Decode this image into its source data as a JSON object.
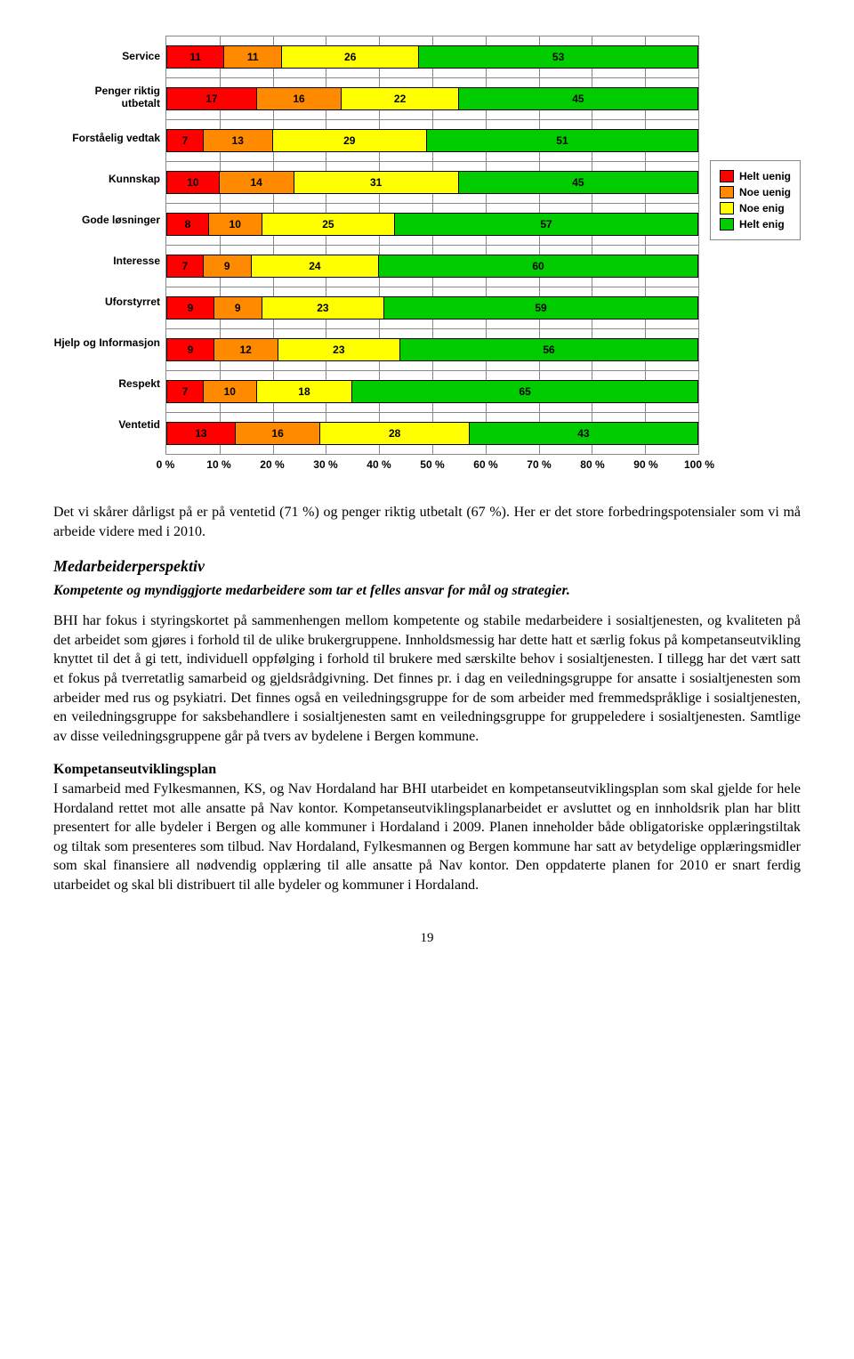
{
  "chart": {
    "type": "stacked-bar-horizontal",
    "categories": [
      "Service",
      "Penger riktig utbetalt",
      "Forståelig vedtak",
      "Kunnskap",
      "Gode løsninger",
      "Interesse",
      "Uforstyrret",
      "Hjelp og Informasjon",
      "Respekt",
      "Ventetid"
    ],
    "series_names": [
      "Helt uenig",
      "Noe uenig",
      "Noe enig",
      "Helt enig"
    ],
    "values": [
      [
        11,
        11,
        26,
        53
      ],
      [
        17,
        16,
        22,
        45
      ],
      [
        7,
        13,
        29,
        51
      ],
      [
        10,
        14,
        31,
        45
      ],
      [
        8,
        10,
        25,
        57
      ],
      [
        7,
        9,
        24,
        60
      ],
      [
        9,
        9,
        23,
        59
      ],
      [
        9,
        12,
        23,
        56
      ],
      [
        7,
        10,
        18,
        65
      ],
      [
        13,
        16,
        28,
        43
      ]
    ],
    "colors": [
      "#ff0000",
      "#ff8a00",
      "#ffff00",
      "#00cc00"
    ],
    "x_ticks": [
      "0 %",
      "10 %",
      "20 %",
      "30 %",
      "40 %",
      "50 %",
      "60 %",
      "70 %",
      "80 %",
      "90 %",
      "100 %"
    ],
    "x_tick_positions": [
      0,
      10,
      20,
      30,
      40,
      50,
      60,
      70,
      80,
      90,
      100
    ],
    "category_font": "Arial bold 12",
    "value_font": "Arial bold 12",
    "grid_color": "#888888",
    "background_color": "#ffffff"
  },
  "legend": {
    "items": [
      "Helt uenig",
      "Noe uenig",
      "Noe enig",
      "Helt enig"
    ],
    "colors": [
      "#ff0000",
      "#ff8a00",
      "#ffff00",
      "#00cc00"
    ]
  },
  "text": {
    "para1": "Det vi skårer dårligst på er på ventetid (71 %) og penger riktig utbetalt (67 %). Her er det store forbedringspotensialer som vi må arbeide videre med i 2010.",
    "h2": "Medarbeiderperspektiv",
    "h3": "Kompetente og myndiggjorte medarbeidere som tar et felles ansvar for mål og strategier.",
    "para2": "BHI har fokus i styringskortet på sammenhengen mellom kompetente og stabile medarbeidere i sosialtjenesten, og kvaliteten på det arbeidet som gjøres i forhold til de ulike brukergruppene. Innholdsmessig har dette hatt et særlig fokus på kompetanseutvikling knyttet til det å gi tett, individuell oppfølging i forhold til brukere med særskilte behov i sosialtjenesten. I tillegg har det vært satt et fokus på tverretatlig samarbeid og gjeldsrådgivning. Det finnes pr. i dag en veiledningsgruppe for ansatte i sosialtjenesten som arbeider med rus og psykiatri. Det finnes også en veiledningsgruppe for de som arbeider med fremmedspråklige i sosialtjenesten, en veiledningsgruppe for saksbehandlere i sosialtjenesten samt en veiledningsgruppe for gruppeledere i sosialtjenesten. Samtlige av disse veiledningsgruppene går på tvers av bydelene i Bergen kommune.",
    "h4": "Kompetanseutviklingsplan",
    "para3": "I samarbeid med Fylkesmannen, KS, og Nav Hordaland har BHI utarbeidet en kompetanseutviklingsplan som skal gjelde for hele Hordaland rettet mot alle ansatte på Nav kontor. Kompetanseutviklingsplanarbeidet er avsluttet og en innholdsrik plan har blitt presentert for alle bydeler i Bergen og alle kommuner i Hordaland i 2009. Planen inneholder både obligatoriske opplæringstiltak og tiltak som presenteres som tilbud. Nav Hordaland, Fylkesmannen og Bergen kommune har satt av betydelige opplæringsmidler som skal finansiere all nødvendig opplæring til alle ansatte på Nav kontor. Den oppdaterte planen for 2010 er snart ferdig utarbeidet og skal bli distribuert til alle bydeler og kommuner i Hordaland.",
    "pagenum": "19"
  }
}
